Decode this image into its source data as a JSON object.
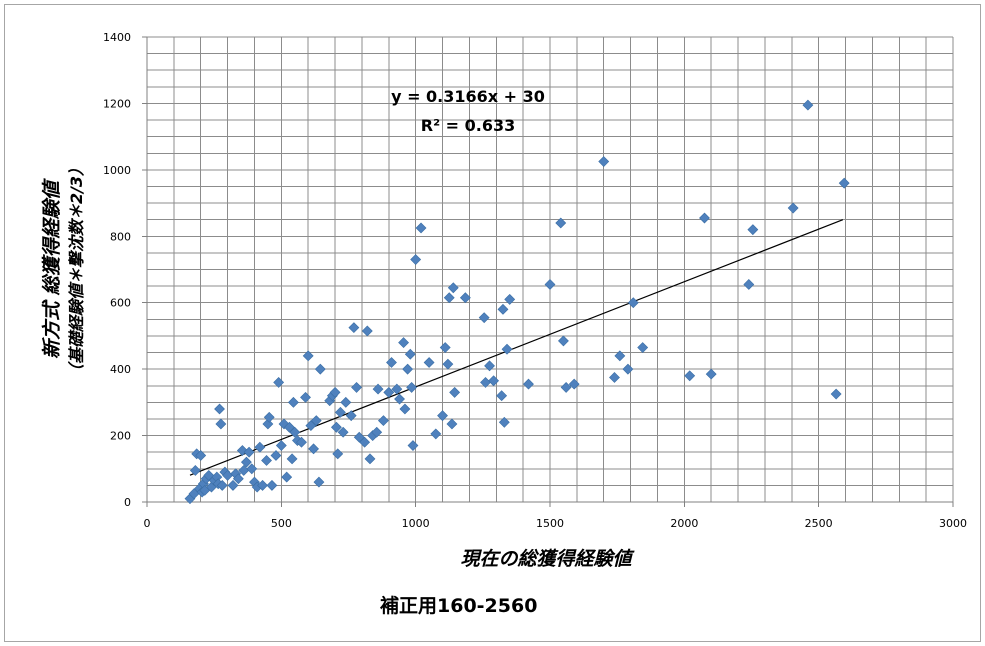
{
  "chart_data": {
    "type": "scatter",
    "xlabel": "現在の総獲得経験値",
    "ylabel_line1": "新方式 総獲得経験値",
    "ylabel_line2": "（基礎経験値＊撃沈数＊2/3）",
    "xlim": [
      0,
      3000
    ],
    "ylim": [
      0,
      1400
    ],
    "x_ticks": [
      0,
      500,
      1000,
      1500,
      2000,
      2500,
      3000
    ],
    "y_ticks": [
      0,
      200,
      400,
      600,
      800,
      1000,
      1200,
      1400
    ],
    "grid": true,
    "marker": "diamond",
    "marker_color": "#4f81bd",
    "trendline": {
      "type": "linear",
      "slope": 0.3166,
      "intercept": 30,
      "x_range": [
        160,
        2590
      ],
      "color": "#000000"
    },
    "equation_label": "y = 0.3166x + 30",
    "r2_label": "R² = 0.633",
    "points": [
      [
        160,
        10
      ],
      [
        175,
        25
      ],
      [
        180,
        95
      ],
      [
        185,
        145
      ],
      [
        195,
        40
      ],
      [
        200,
        140
      ],
      [
        205,
        30
      ],
      [
        210,
        55
      ],
      [
        215,
        35
      ],
      [
        220,
        70
      ],
      [
        230,
        80
      ],
      [
        240,
        45
      ],
      [
        250,
        65
      ],
      [
        260,
        75
      ],
      [
        265,
        55
      ],
      [
        270,
        280
      ],
      [
        275,
        235
      ],
      [
        280,
        50
      ],
      [
        290,
        90
      ],
      [
        300,
        80
      ],
      [
        320,
        50
      ],
      [
        330,
        85
      ],
      [
        340,
        70
      ],
      [
        355,
        155
      ],
      [
        360,
        95
      ],
      [
        370,
        120
      ],
      [
        380,
        150
      ],
      [
        390,
        100
      ],
      [
        400,
        60
      ],
      [
        410,
        45
      ],
      [
        420,
        165
      ],
      [
        430,
        50
      ],
      [
        445,
        125
      ],
      [
        450,
        235
      ],
      [
        455,
        255
      ],
      [
        465,
        50
      ],
      [
        480,
        140
      ],
      [
        490,
        360
      ],
      [
        500,
        170
      ],
      [
        510,
        235
      ],
      [
        520,
        75
      ],
      [
        530,
        225
      ],
      [
        540,
        130
      ],
      [
        545,
        300
      ],
      [
        550,
        210
      ],
      [
        560,
        185
      ],
      [
        575,
        180
      ],
      [
        590,
        315
      ],
      [
        600,
        440
      ],
      [
        610,
        230
      ],
      [
        620,
        160
      ],
      [
        630,
        245
      ],
      [
        640,
        60
      ],
      [
        645,
        400
      ],
      [
        680,
        305
      ],
      [
        690,
        320
      ],
      [
        700,
        330
      ],
      [
        705,
        225
      ],
      [
        710,
        145
      ],
      [
        720,
        270
      ],
      [
        730,
        210
      ],
      [
        740,
        300
      ],
      [
        760,
        260
      ],
      [
        770,
        525
      ],
      [
        780,
        345
      ],
      [
        790,
        195
      ],
      [
        810,
        180
      ],
      [
        820,
        515
      ],
      [
        830,
        130
      ],
      [
        840,
        200
      ],
      [
        855,
        210
      ],
      [
        860,
        340
      ],
      [
        880,
        245
      ],
      [
        900,
        330
      ],
      [
        910,
        420
      ],
      [
        930,
        340
      ],
      [
        940,
        310
      ],
      [
        955,
        480
      ],
      [
        960,
        280
      ],
      [
        970,
        400
      ],
      [
        980,
        445
      ],
      [
        985,
        345
      ],
      [
        990,
        170
      ],
      [
        1000,
        730
      ],
      [
        1020,
        825
      ],
      [
        1050,
        420
      ],
      [
        1075,
        205
      ],
      [
        1100,
        260
      ],
      [
        1110,
        465
      ],
      [
        1120,
        415
      ],
      [
        1125,
        615
      ],
      [
        1135,
        235
      ],
      [
        1140,
        645
      ],
      [
        1145,
        330
      ],
      [
        1185,
        615
      ],
      [
        1255,
        555
      ],
      [
        1260,
        360
      ],
      [
        1275,
        410
      ],
      [
        1290,
        365
      ],
      [
        1320,
        320
      ],
      [
        1325,
        580
      ],
      [
        1330,
        240
      ],
      [
        1340,
        460
      ],
      [
        1350,
        610
      ],
      [
        1420,
        355
      ],
      [
        1500,
        655
      ],
      [
        1540,
        840
      ],
      [
        1550,
        485
      ],
      [
        1560,
        345
      ],
      [
        1590,
        355
      ],
      [
        1700,
        1025
      ],
      [
        1740,
        375
      ],
      [
        1760,
        440
      ],
      [
        1790,
        400
      ],
      [
        1810,
        600
      ],
      [
        1845,
        465
      ],
      [
        2020,
        380
      ],
      [
        2075,
        855
      ],
      [
        2100,
        385
      ],
      [
        2240,
        655
      ],
      [
        2255,
        820
      ],
      [
        2405,
        885
      ],
      [
        2460,
        1195
      ],
      [
        2565,
        325
      ],
      [
        2595,
        960
      ]
    ]
  },
  "caption": "補正用160-2560"
}
